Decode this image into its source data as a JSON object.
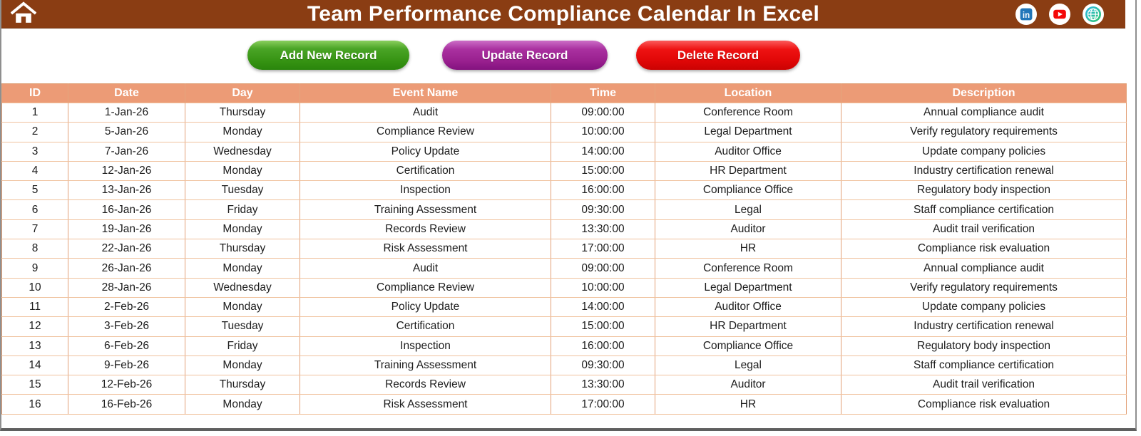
{
  "header": {
    "title": "Team Performance Compliance Calendar In Excel",
    "bg_color": "#8A3D13",
    "icons": [
      "home-icon",
      "linkedin-icon",
      "youtube-icon",
      "globe-icon"
    ]
  },
  "toolbar": {
    "buttons": [
      {
        "label": "Add New Record",
        "color": "#359212"
      },
      {
        "label": "Update Record",
        "color": "#99208f"
      },
      {
        "label": "Delete Record",
        "color": "#e20808"
      }
    ]
  },
  "table": {
    "header_bg": "#EC9B76",
    "columns": [
      "ID",
      "Date",
      "Day",
      "Event Name",
      "Time",
      "Location",
      "Description"
    ],
    "rows": [
      [
        "1",
        "1-Jan-26",
        "Thursday",
        "Audit",
        "09:00:00",
        "Conference Room",
        "Annual compliance audit"
      ],
      [
        "2",
        "5-Jan-26",
        "Monday",
        "Compliance Review",
        "10:00:00",
        "Legal Department",
        "Verify regulatory requirements"
      ],
      [
        "3",
        "7-Jan-26",
        "Wednesday",
        "Policy Update",
        "14:00:00",
        "Auditor Office",
        "Update company policies"
      ],
      [
        "4",
        "12-Jan-26",
        "Monday",
        "Certification",
        "15:00:00",
        "HR Department",
        "Industry certification renewal"
      ],
      [
        "5",
        "13-Jan-26",
        "Tuesday",
        "Inspection",
        "16:00:00",
        "Compliance Office",
        "Regulatory body inspection"
      ],
      [
        "6",
        "16-Jan-26",
        "Friday",
        "Training Assessment",
        "09:30:00",
        "Legal",
        "Staff compliance certification"
      ],
      [
        "7",
        "19-Jan-26",
        "Monday",
        "Records Review",
        "13:30:00",
        "Auditor",
        "Audit trail verification"
      ],
      [
        "8",
        "22-Jan-26",
        "Thursday",
        "Risk Assessment",
        "17:00:00",
        "HR",
        "Compliance risk evaluation"
      ],
      [
        "9",
        "26-Jan-26",
        "Monday",
        "Audit",
        "09:00:00",
        "Conference Room",
        "Annual compliance audit"
      ],
      [
        "10",
        "28-Jan-26",
        "Wednesday",
        "Compliance Review",
        "10:00:00",
        "Legal Department",
        "Verify regulatory requirements"
      ],
      [
        "11",
        "2-Feb-26",
        "Monday",
        "Policy Update",
        "14:00:00",
        "Auditor Office",
        "Update company policies"
      ],
      [
        "12",
        "3-Feb-26",
        "Tuesday",
        "Certification",
        "15:00:00",
        "HR Department",
        "Industry certification renewal"
      ],
      [
        "13",
        "6-Feb-26",
        "Friday",
        "Inspection",
        "16:00:00",
        "Compliance Office",
        "Regulatory body inspection"
      ],
      [
        "14",
        "9-Feb-26",
        "Monday",
        "Training Assessment",
        "09:30:00",
        "Legal",
        "Staff compliance certification"
      ],
      [
        "15",
        "12-Feb-26",
        "Thursday",
        "Records Review",
        "13:30:00",
        "Auditor",
        "Audit trail verification"
      ],
      [
        "16",
        "16-Feb-26",
        "Monday",
        "Risk Assessment",
        "17:00:00",
        "HR",
        "Compliance risk evaluation"
      ]
    ]
  }
}
